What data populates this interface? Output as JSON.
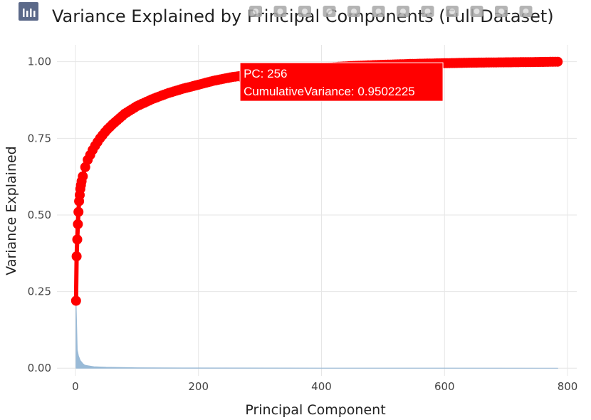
{
  "title": "Variance Explained by Principal Components (Full Dataset)",
  "chart_data": {
    "type": "line",
    "xlabel": "Principal Component",
    "ylabel": "Variance Explained",
    "xlim": [
      -30,
      815
    ],
    "ylim": [
      -0.025,
      1.055
    ],
    "x_ticks": [
      0,
      200,
      400,
      600,
      800
    ],
    "x_tick_labels": [
      "0",
      "200",
      "400",
      "600",
      "800"
    ],
    "y_ticks": [
      0,
      0.25,
      0.5,
      0.75,
      1.0
    ],
    "y_tick_labels": [
      "0.00",
      "0.25",
      "0.50",
      "0.75",
      "1.00"
    ],
    "grid": true,
    "series": [
      {
        "type": "line_markers",
        "color": "#ff0000",
        "points": [
          [
            1,
            0.22
          ],
          [
            2,
            0.365
          ],
          [
            3,
            0.42
          ],
          [
            4,
            0.47
          ],
          [
            5,
            0.51
          ],
          [
            6,
            0.545
          ],
          [
            7,
            0.565
          ],
          [
            8,
            0.585
          ],
          [
            10,
            0.61
          ],
          [
            15,
            0.65
          ],
          [
            20,
            0.68
          ],
          [
            30,
            0.72
          ],
          [
            40,
            0.75
          ],
          [
            50,
            0.775
          ],
          [
            60,
            0.795
          ],
          [
            80,
            0.83
          ],
          [
            100,
            0.855
          ],
          [
            125,
            0.878
          ],
          [
            150,
            0.897
          ],
          [
            175,
            0.912
          ],
          [
            200,
            0.925
          ],
          [
            225,
            0.938
          ],
          [
            256,
            0.9502225
          ],
          [
            300,
            0.962
          ],
          [
            350,
            0.972
          ],
          [
            400,
            0.98
          ],
          [
            450,
            0.986
          ],
          [
            500,
            0.99
          ],
          [
            550,
            0.993
          ],
          [
            600,
            0.995
          ],
          [
            650,
            0.997
          ],
          [
            700,
            0.998
          ],
          [
            750,
            0.999
          ],
          [
            784,
            1.0
          ]
        ]
      },
      {
        "type": "area",
        "color": "#8fb3d3",
        "points": [
          [
            1,
            0.22
          ],
          [
            2,
            0.145
          ],
          [
            3,
            0.06
          ],
          [
            4,
            0.05
          ],
          [
            5,
            0.04
          ],
          [
            6,
            0.035
          ],
          [
            8,
            0.025
          ],
          [
            10,
            0.02
          ],
          [
            12,
            0.015
          ],
          [
            15,
            0.01
          ],
          [
            20,
            0.008
          ],
          [
            30,
            0.005
          ],
          [
            50,
            0.003
          ],
          [
            100,
            0.0015
          ],
          [
            200,
            0.0008
          ],
          [
            400,
            0.0003
          ],
          [
            784,
            0.0
          ]
        ]
      }
    ]
  },
  "tooltip": {
    "line1": "PC: 256",
    "line2": "CumulativeVariance: 0.9502225",
    "color": "#ff0000",
    "x": 256,
    "y": 0.9502225
  },
  "modebar": {
    "buttons": [
      "camera-icon",
      "zoom-icon",
      "pan-icon",
      "box-select-icon",
      "lasso-icon",
      "zoom-in-icon",
      "zoom-out-icon",
      "autoscale-icon",
      "reset-axes-icon",
      "spike-lines-icon",
      "hover-closest-icon",
      "hover-compare-icon",
      "plotly-logo-icon"
    ]
  }
}
